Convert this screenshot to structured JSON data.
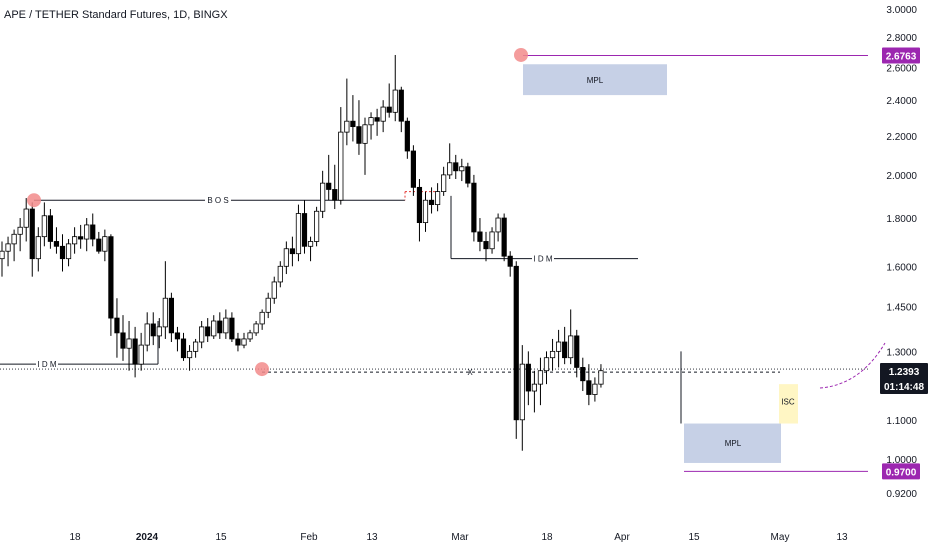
{
  "header": {
    "title": "APE / TETHER Standard Futures, 1D, BINGX"
  },
  "chart_data": {
    "type": "candlestick",
    "y_scale": "log",
    "ylim": [
      0.9,
      3.05
    ],
    "y_ticks": [
      "3.0000",
      "2.8000",
      "2.6000",
      "2.4000",
      "2.2000",
      "2.0000",
      "1.8000",
      "1.6000",
      "1.4500",
      "1.3000",
      "1.1000",
      "1.0000",
      "0.9200"
    ],
    "x_ticks": [
      {
        "label": "18",
        "day": 0
      },
      {
        "label": "2024",
        "day": 14
      },
      {
        "label": "15",
        "day": 28
      },
      {
        "label": "Feb",
        "day": 45
      },
      {
        "label": "13",
        "day": 57
      },
      {
        "label": "Mar",
        "day": 74
      },
      {
        "label": "18",
        "day": 91
      },
      {
        "label": "Apr",
        "day": 105
      },
      {
        "label": "15",
        "day": 119
      },
      {
        "label": "May",
        "day": 135
      },
      {
        "label": "13",
        "day": 147
      }
    ],
    "ohlc": [
      [
        1.63,
        1.7,
        1.56,
        1.66
      ],
      [
        1.66,
        1.72,
        1.6,
        1.69
      ],
      [
        1.69,
        1.75,
        1.62,
        1.73
      ],
      [
        1.73,
        1.8,
        1.66,
        1.76
      ],
      [
        1.76,
        1.89,
        1.7,
        1.84
      ],
      [
        1.84,
        1.87,
        1.56,
        1.63
      ],
      [
        1.63,
        1.76,
        1.58,
        1.72
      ],
      [
        1.72,
        1.87,
        1.68,
        1.81
      ],
      [
        1.81,
        1.84,
        1.67,
        1.7
      ],
      [
        1.7,
        1.76,
        1.65,
        1.68
      ],
      [
        1.68,
        1.73,
        1.58,
        1.63
      ],
      [
        1.63,
        1.71,
        1.6,
        1.69
      ],
      [
        1.69,
        1.76,
        1.65,
        1.72
      ],
      [
        1.72,
        1.77,
        1.67,
        1.71
      ],
      [
        1.71,
        1.8,
        1.66,
        1.77
      ],
      [
        1.77,
        1.82,
        1.68,
        1.71
      ],
      [
        1.71,
        1.74,
        1.65,
        1.66
      ],
      [
        1.66,
        1.75,
        1.62,
        1.72
      ],
      [
        1.72,
        1.73,
        1.35,
        1.41
      ],
      [
        1.41,
        1.48,
        1.28,
        1.36
      ],
      [
        1.36,
        1.42,
        1.27,
        1.31
      ],
      [
        1.31,
        1.4,
        1.24,
        1.34
      ],
      [
        1.34,
        1.38,
        1.22,
        1.26
      ],
      [
        1.26,
        1.36,
        1.24,
        1.32
      ],
      [
        1.32,
        1.43,
        1.3,
        1.39
      ],
      [
        1.39,
        1.43,
        1.32,
        1.35
      ],
      [
        1.35,
        1.41,
        1.31,
        1.38
      ],
      [
        1.38,
        1.62,
        1.34,
        1.48
      ],
      [
        1.48,
        1.5,
        1.33,
        1.36
      ],
      [
        1.36,
        1.38,
        1.3,
        1.34
      ],
      [
        1.34,
        1.36,
        1.27,
        1.28
      ],
      [
        1.28,
        1.32,
        1.24,
        1.3
      ],
      [
        1.3,
        1.34,
        1.28,
        1.33
      ],
      [
        1.33,
        1.4,
        1.31,
        1.38
      ],
      [
        1.38,
        1.41,
        1.33,
        1.35
      ],
      [
        1.35,
        1.42,
        1.34,
        1.4
      ],
      [
        1.4,
        1.43,
        1.34,
        1.36
      ],
      [
        1.36,
        1.44,
        1.34,
        1.41
      ],
      [
        1.41,
        1.43,
        1.33,
        1.34
      ],
      [
        1.34,
        1.36,
        1.3,
        1.32
      ],
      [
        1.32,
        1.36,
        1.31,
        1.34
      ],
      [
        1.34,
        1.37,
        1.33,
        1.36
      ],
      [
        1.36,
        1.4,
        1.35,
        1.39
      ],
      [
        1.39,
        1.44,
        1.37,
        1.43
      ],
      [
        1.43,
        1.5,
        1.41,
        1.48
      ],
      [
        1.48,
        1.56,
        1.46,
        1.54
      ],
      [
        1.54,
        1.62,
        1.52,
        1.6
      ],
      [
        1.6,
        1.7,
        1.57,
        1.67
      ],
      [
        1.67,
        1.72,
        1.6,
        1.65
      ],
      [
        1.65,
        1.86,
        1.62,
        1.82
      ],
      [
        1.82,
        1.88,
        1.65,
        1.68
      ],
      [
        1.68,
        1.72,
        1.62,
        1.7
      ],
      [
        1.7,
        1.85,
        1.68,
        1.83
      ],
      [
        1.83,
        2.02,
        1.8,
        1.96
      ],
      [
        1.96,
        2.1,
        1.88,
        1.93
      ],
      [
        1.93,
        2.05,
        1.84,
        1.88
      ],
      [
        1.88,
        2.36,
        1.86,
        2.22
      ],
      [
        2.22,
        2.53,
        2.15,
        2.28
      ],
      [
        2.28,
        2.43,
        2.17,
        2.25
      ],
      [
        2.25,
        2.4,
        2.1,
        2.16
      ],
      [
        2.16,
        2.3,
        2.0,
        2.26
      ],
      [
        2.26,
        2.33,
        2.18,
        2.3
      ],
      [
        2.3,
        2.35,
        2.2,
        2.28
      ],
      [
        2.28,
        2.4,
        2.22,
        2.36
      ],
      [
        2.36,
        2.5,
        2.3,
        2.33
      ],
      [
        2.33,
        2.68,
        2.28,
        2.46
      ],
      [
        2.46,
        2.48,
        2.22,
        2.28
      ],
      [
        2.28,
        2.3,
        2.08,
        2.12
      ],
      [
        2.12,
        2.15,
        1.9,
        1.94
      ],
      [
        1.94,
        1.98,
        1.7,
        1.78
      ],
      [
        1.78,
        1.92,
        1.74,
        1.88
      ],
      [
        1.88,
        1.94,
        1.82,
        1.86
      ],
      [
        1.86,
        1.96,
        1.83,
        1.92
      ],
      [
        1.92,
        2.04,
        1.9,
        2.0
      ],
      [
        2.0,
        2.16,
        1.98,
        2.06
      ],
      [
        2.06,
        2.1,
        1.98,
        2.02
      ],
      [
        2.02,
        2.08,
        1.97,
        2.04
      ],
      [
        2.04,
        2.06,
        1.94,
        1.96
      ],
      [
        1.96,
        2.0,
        1.7,
        1.74
      ],
      [
        1.74,
        1.8,
        1.66,
        1.7
      ],
      [
        1.7,
        1.74,
        1.62,
        1.67
      ],
      [
        1.67,
        1.76,
        1.65,
        1.74
      ],
      [
        1.74,
        1.82,
        1.7,
        1.8
      ],
      [
        1.8,
        1.82,
        1.62,
        1.64
      ],
      [
        1.64,
        1.66,
        1.56,
        1.6
      ],
      [
        1.6,
        1.62,
        1.05,
        1.1
      ],
      [
        1.1,
        1.32,
        1.02,
        1.26
      ],
      [
        1.26,
        1.3,
        1.14,
        1.18
      ],
      [
        1.18,
        1.24,
        1.12,
        1.2
      ],
      [
        1.2,
        1.28,
        1.14,
        1.24
      ],
      [
        1.24,
        1.3,
        1.2,
        1.28
      ],
      [
        1.28,
        1.34,
        1.24,
        1.3
      ],
      [
        1.3,
        1.37,
        1.25,
        1.33
      ],
      [
        1.33,
        1.38,
        1.26,
        1.28
      ],
      [
        1.28,
        1.44,
        1.26,
        1.35
      ],
      [
        1.35,
        1.37,
        1.22,
        1.25
      ],
      [
        1.25,
        1.28,
        1.18,
        1.21
      ],
      [
        1.21,
        1.26,
        1.14,
        1.17
      ],
      [
        1.17,
        1.22,
        1.15,
        1.2
      ],
      [
        1.2,
        1.26,
        1.19,
        1.24
      ]
    ],
    "current_price": "1.2393",
    "countdown": "01:14:48",
    "price_tags": [
      {
        "price": 2.6763,
        "label": "2.6763",
        "color": "#9c27b0"
      },
      {
        "price": 0.97,
        "label": "0.9700",
        "color": "#9c27b0"
      }
    ],
    "annotations": {
      "bos": "BOS",
      "idm": "IDM",
      "mpl": "MPL",
      "isc": "ISC",
      "x": "X"
    },
    "colors": {
      "up": "#ffffff",
      "down": "#000000",
      "wick": "#000000",
      "zone": "#c6d0e6",
      "isc": "#fff6c4",
      "pivot": "#f28b8b",
      "tag": "#9c27b0"
    }
  }
}
